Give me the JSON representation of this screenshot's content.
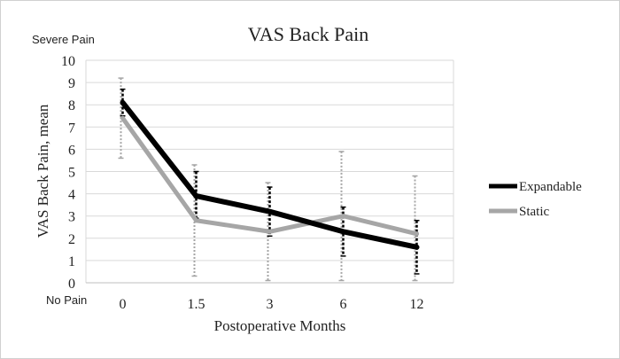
{
  "chart_data": {
    "type": "line",
    "title": "VAS Back Pain",
    "xlabel": "Postoperative Months",
    "ylabel": "VAS Back Pain, mean",
    "scale_top_label": "Severe Pain",
    "scale_bottom_label": "No Pain",
    "categories": [
      "0",
      "1.5",
      "3",
      "6",
      "12"
    ],
    "yticks": [
      "0",
      "1",
      "2",
      "3",
      "4",
      "5",
      "6",
      "7",
      "8",
      "9",
      "10"
    ],
    "ylim": [
      0,
      10
    ],
    "grid": true,
    "legend_position": "right",
    "series": [
      {
        "name": "Expandable",
        "color": "#000000",
        "values": [
          8.1,
          3.9,
          3.2,
          2.3,
          1.6
        ],
        "error_low": [
          7.5,
          2.9,
          2.1,
          1.2,
          0.4
        ],
        "error_high": [
          8.7,
          5.0,
          4.3,
          3.4,
          2.8
        ]
      },
      {
        "name": "Static",
        "color": "#a6a6a6",
        "values": [
          7.4,
          2.8,
          2.3,
          3.0,
          2.2
        ],
        "error_low": [
          5.6,
          0.3,
          0.1,
          0.1,
          0.1
        ],
        "error_high": [
          9.2,
          5.3,
          4.5,
          5.9,
          4.8
        ]
      }
    ]
  }
}
